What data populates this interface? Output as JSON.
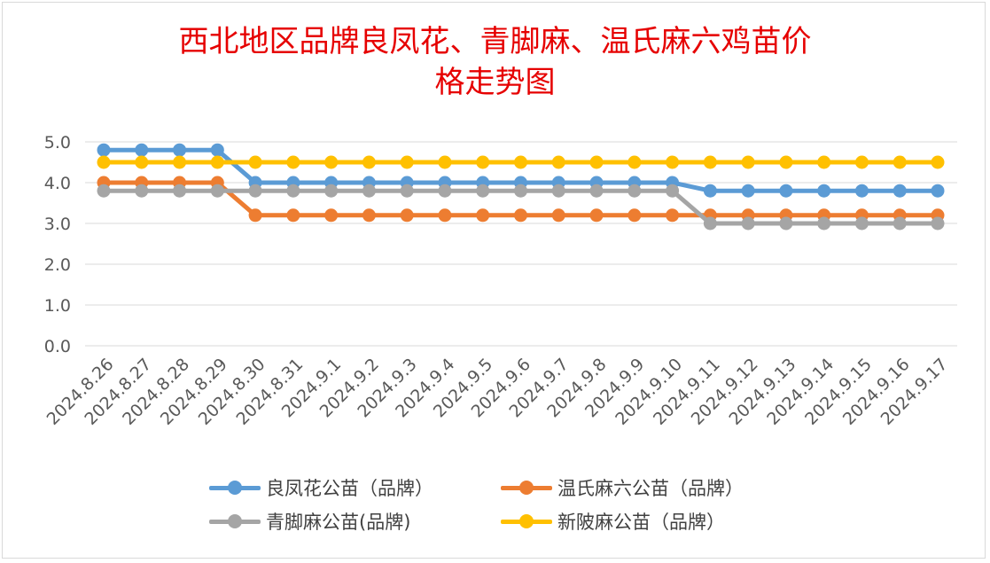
{
  "chart_data": {
    "type": "line",
    "title_line1": "西北地区品牌良凤花、青脚麻、温氏麻六鸡苗价",
    "title_line2": "格走势图",
    "categories": [
      "2024.8.26",
      "2024.8.27",
      "2024.8.28",
      "2024.8.29",
      "2024.8.30",
      "2024.8.31",
      "2024.9.1",
      "2024.9.2",
      "2024.9.3",
      "2024.9.4",
      "2024.9.5",
      "2024.9.6",
      "2024.9.7",
      "2024.9.8",
      "2024.9.9",
      "2024.9.10",
      "2024.9.11",
      "2024.9.12",
      "2024.9.13",
      "2024.9.14",
      "2024.9.15",
      "2024.9.16",
      "2024.9.17"
    ],
    "ylim": [
      0,
      5
    ],
    "yticks": [
      "0.0",
      "1.0",
      "2.0",
      "3.0",
      "4.0",
      "5.0"
    ],
    "grid": true,
    "legend_position": "bottom",
    "series": [
      {
        "name": "良凤花公苗（品牌）",
        "color": "#5b9bd5",
        "values": [
          4.8,
          4.8,
          4.8,
          4.8,
          4.0,
          4.0,
          4.0,
          4.0,
          4.0,
          4.0,
          4.0,
          4.0,
          4.0,
          4.0,
          4.0,
          4.0,
          3.8,
          3.8,
          3.8,
          3.8,
          3.8,
          3.8,
          3.8
        ]
      },
      {
        "name": "温氏麻六公苗（品牌）",
        "color": "#ed7d31",
        "values": [
          4.0,
          4.0,
          4.0,
          4.0,
          3.2,
          3.2,
          3.2,
          3.2,
          3.2,
          3.2,
          3.2,
          3.2,
          3.2,
          3.2,
          3.2,
          3.2,
          3.2,
          3.2,
          3.2,
          3.2,
          3.2,
          3.2,
          3.2
        ]
      },
      {
        "name": "青脚麻公苗(品牌)",
        "color": "#a5a5a5",
        "values": [
          3.8,
          3.8,
          3.8,
          3.8,
          3.8,
          3.8,
          3.8,
          3.8,
          3.8,
          3.8,
          3.8,
          3.8,
          3.8,
          3.8,
          3.8,
          3.8,
          3.0,
          3.0,
          3.0,
          3.0,
          3.0,
          3.0,
          3.0
        ]
      },
      {
        "name": "新陂麻公苗（品牌）",
        "color": "#ffc000",
        "values": [
          4.5,
          4.5,
          4.5,
          4.5,
          4.5,
          4.5,
          4.5,
          4.5,
          4.5,
          4.5,
          4.5,
          4.5,
          4.5,
          4.5,
          4.5,
          4.5,
          4.5,
          4.5,
          4.5,
          4.5,
          4.5,
          4.5,
          4.5
        ]
      }
    ]
  }
}
